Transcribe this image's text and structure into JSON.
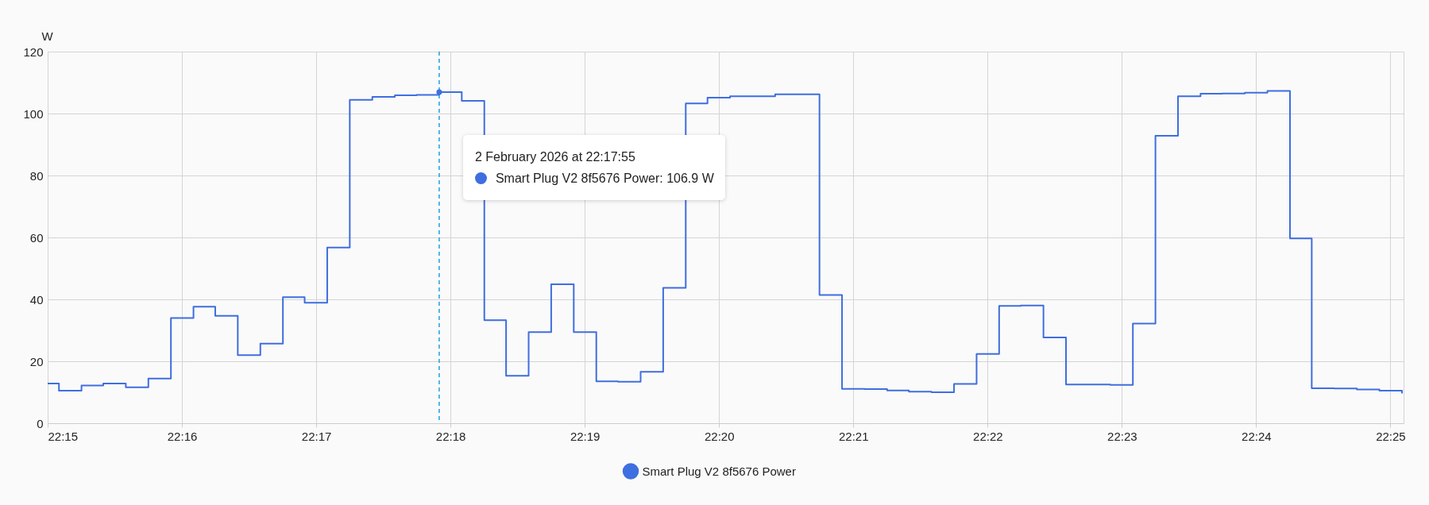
{
  "chart_data": {
    "type": "step",
    "ylabel": "W",
    "x": [
      22.25,
      22.2514,
      22.2542,
      22.2569,
      22.2597,
      22.2625,
      22.2653,
      22.2681,
      22.2708,
      22.2736,
      22.2764,
      22.2792,
      22.2819,
      22.2847,
      22.2875,
      22.2903,
      22.2931,
      22.2958,
      22.2986,
      22.3014,
      22.3042,
      22.3069,
      22.3097,
      22.3125,
      22.3153,
      22.3181,
      22.3208,
      22.3236,
      22.3264,
      22.3292,
      22.3319,
      22.3347,
      22.3375,
      22.3403,
      22.3431,
      22.3458,
      22.3486,
      22.3514,
      22.3542,
      22.3569,
      22.3597,
      22.3625,
      22.3653,
      22.3681,
      22.3708,
      22.3736,
      22.3764,
      22.3792,
      22.3819,
      22.3847,
      22.3875,
      22.3903,
      22.3931,
      22.3958,
      22.3986,
      22.4014,
      22.4042,
      22.4069,
      22.4097,
      22.4125,
      22.4153,
      22.4181
    ],
    "series": [
      {
        "name": "Smart Plug V2 8f5676 Power",
        "color": "#3f6ee0",
        "values": [
          12.8,
          10.5,
          12.2,
          12.8,
          11.6,
          14.4,
          34.0,
          37.6,
          34.7,
          22.0,
          25.7,
          40.7,
          38.9,
          56.7,
          104.4,
          105.4,
          105.9,
          106.0,
          106.9,
          104.1,
          33.3,
          15.3,
          29.4,
          44.9,
          29.4,
          13.5,
          13.4,
          16.6,
          43.7,
          103.3,
          105.1,
          105.6,
          105.6,
          106.2,
          106.2,
          41.4,
          11.1,
          11.0,
          10.6,
          10.2,
          10.0,
          12.7,
          22.4,
          37.9,
          38.0,
          27.7,
          12.5,
          12.5,
          12.4,
          32.2,
          92.8,
          105.6,
          106.4,
          106.5,
          106.7,
          107.3,
          59.7,
          11.3,
          11.2,
          10.9,
          10.5,
          9.6
        ]
      }
    ],
    "xlim": [
      22.25,
      22.4183
    ],
    "xticks": [
      {
        "value": 22.25,
        "label": "22:15"
      },
      {
        "value": 22.266667,
        "label": "22:16"
      },
      {
        "value": 22.283333,
        "label": "22:17"
      },
      {
        "value": 22.3,
        "label": "22:18"
      },
      {
        "value": 22.316667,
        "label": "22:19"
      },
      {
        "value": 22.333333,
        "label": "22:20"
      },
      {
        "value": 22.35,
        "label": "22:21"
      },
      {
        "value": 22.366667,
        "label": "22:22"
      },
      {
        "value": 22.383333,
        "label": "22:23"
      },
      {
        "value": 22.4,
        "label": "22:24"
      },
      {
        "value": 22.416667,
        "label": "22:25"
      }
    ],
    "ylim": [
      0,
      120
    ],
    "yticks": [
      0,
      20,
      40,
      60,
      80,
      100,
      120
    ],
    "grid": true,
    "legend": "bottom",
    "ref_lines": [
      {
        "axis": "x",
        "value": 22.2986,
        "color": "#1ba1e2",
        "line_style": "dashed"
      }
    ],
    "annotations": [
      "2 February 2026 at 22:17:55",
      "Smart Plug V2 8f5676 Power: 106.9 W"
    ]
  }
}
